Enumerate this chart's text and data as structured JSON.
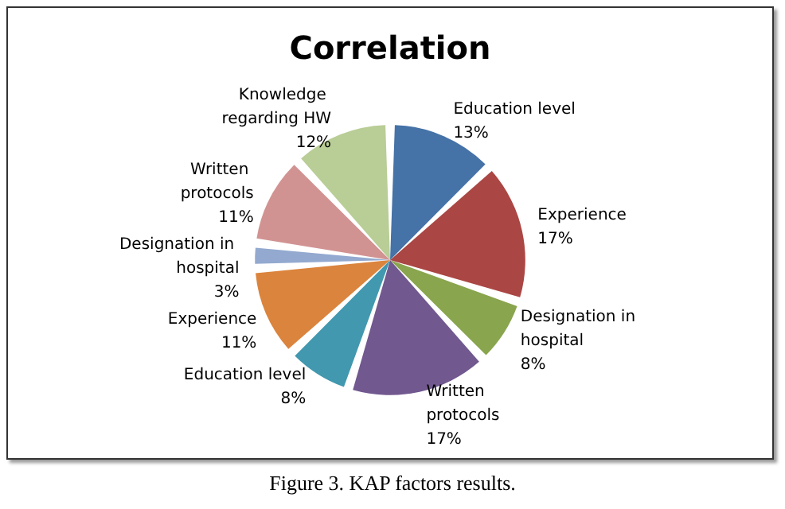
{
  "chart_data": {
    "type": "pie",
    "title": "Correlation",
    "categories": [
      "Education level",
      "Experience",
      "Designation in hospital",
      "Written protocols",
      "Education level",
      "Experience",
      "Designation in hospital",
      "Written protocols",
      "Knowledge regarding HW"
    ],
    "values": [
      13,
      17,
      8,
      17,
      8,
      11,
      3,
      11,
      12
    ],
    "colors": [
      "#4572a7",
      "#aa4643",
      "#89a54e",
      "#71588f",
      "#4198af",
      "#db843d",
      "#93a9cf",
      "#d19392",
      "#b9cd96"
    ],
    "value_labels": [
      "13%",
      "17%",
      "8%",
      "17%",
      "8%",
      "11%",
      "3%",
      "11%",
      "12%"
    ],
    "legend": false,
    "annotations": [
      "Figure 3. KAP factors results."
    ]
  }
}
